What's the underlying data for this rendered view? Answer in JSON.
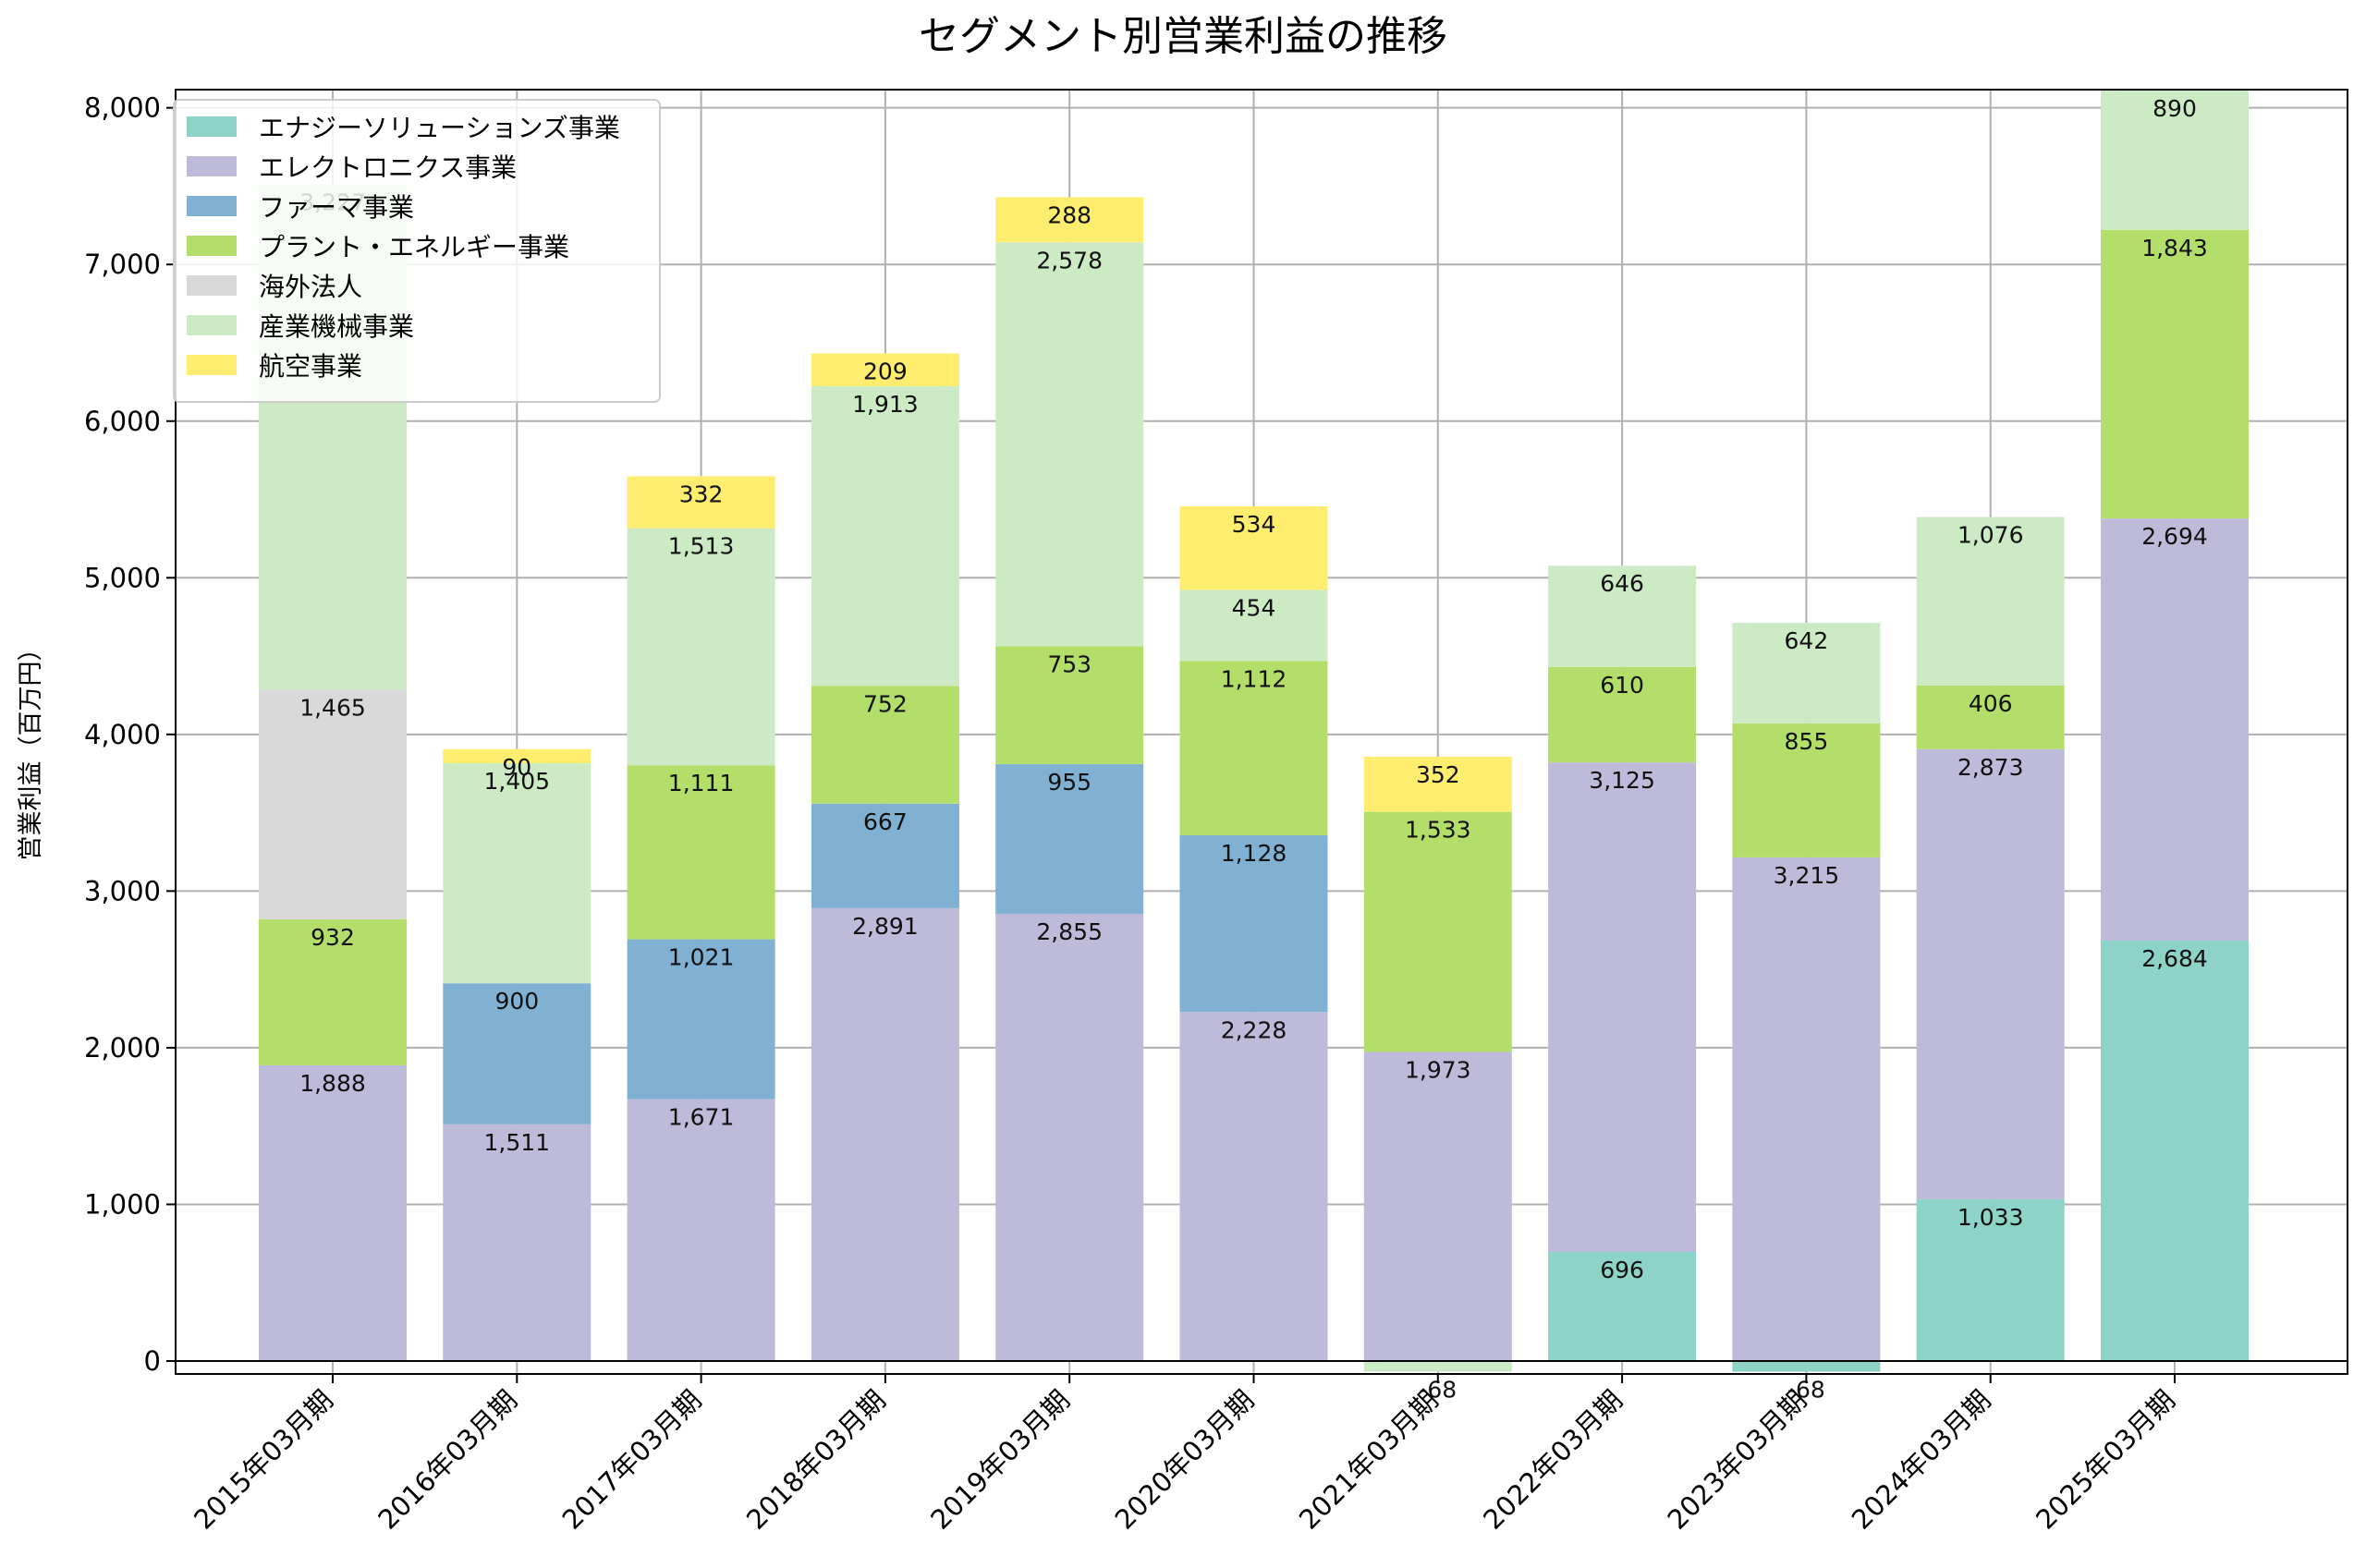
{
  "chart_data": {
    "type": "bar",
    "stacked": true,
    "title": "セグメント別営業利益の推移",
    "xlabel": "",
    "ylabel": "営業利益（百万円）",
    "ylim": [
      -80,
      8100
    ],
    "yticks": [
      0,
      1000,
      2000,
      3000,
      4000,
      5000,
      6000,
      7000,
      8000
    ],
    "ytick_labels": [
      "0",
      "1,000",
      "2,000",
      "3,000",
      "4,000",
      "5,000",
      "6,000",
      "7,000",
      "8,000"
    ],
    "grid": true,
    "legend_position": "top-left",
    "categories": [
      "2015年03月期",
      "2016年03月期",
      "2017年03月期",
      "2018年03月期",
      "2019年03月期",
      "2020年03月期",
      "2021年03月期",
      "2022年03月期",
      "2023年03月期",
      "2024年03月期",
      "2025年03月期"
    ],
    "series": [
      {
        "name": "エナジーソリューションズ事業",
        "color": "#8dd3c7",
        "values": [
          null,
          null,
          null,
          null,
          null,
          null,
          null,
          696,
          -68,
          1033,
          2684
        ]
      },
      {
        "name": "エレクトロニクス事業",
        "color": "#bebada",
        "values": [
          1888,
          1511,
          1671,
          2891,
          2855,
          2228,
          1973,
          3125,
          3215,
          2873,
          2694
        ]
      },
      {
        "name": "ファーマ事業",
        "color": "#80b1d3",
        "values": [
          null,
          900,
          1021,
          667,
          955,
          1128,
          null,
          null,
          null,
          null,
          null
        ]
      },
      {
        "name": "プラント・エネルギー事業",
        "color": "#b3de69",
        "values": [
          932,
          null,
          1111,
          752,
          753,
          1112,
          1533,
          610,
          855,
          406,
          1843
        ]
      },
      {
        "name": "海外法人",
        "color": "#d9d9d9",
        "values": [
          1465,
          null,
          null,
          null,
          null,
          null,
          null,
          null,
          null,
          null,
          null
        ]
      },
      {
        "name": "産業機械事業",
        "color": "#ccebc5",
        "values": [
          3227,
          1405,
          1513,
          1913,
          2578,
          454,
          -68,
          646,
          642,
          1076,
          890
        ]
      },
      {
        "name": "航空事業",
        "color": "#ffed6f",
        "values": [
          null,
          90,
          332,
          209,
          288,
          534,
          352,
          null,
          null,
          null,
          null
        ]
      }
    ],
    "data_labels": [
      [
        "",
        "1,888",
        "",
        "932",
        "1,465",
        "3,227",
        ""
      ],
      [
        "",
        "1,511",
        "900",
        "",
        "",
        "1,405",
        "90"
      ],
      [
        "",
        "1,671",
        "1,021",
        "1,111",
        "",
        "1,513",
        "332"
      ],
      [
        "",
        "2,891",
        "667",
        "752",
        "",
        "1,913",
        "209"
      ],
      [
        "",
        "2,855",
        "955",
        "753",
        "",
        "2,578",
        "288"
      ],
      [
        "",
        "2,228",
        "1,128",
        "1,112",
        "",
        "454",
        "534"
      ],
      [
        "",
        "1,973",
        "",
        "1,533",
        "",
        "-68",
        "352"
      ],
      [
        "696",
        "3,125",
        "",
        "610",
        "",
        "646",
        ""
      ],
      [
        "-68",
        "3,215",
        "",
        "855",
        "",
        "642",
        ""
      ],
      [
        "1,033",
        "2,873",
        "",
        "406",
        "",
        "1,076",
        ""
      ],
      [
        "2,684",
        "2,694",
        "",
        "1,843",
        "",
        "890",
        ""
      ]
    ]
  }
}
